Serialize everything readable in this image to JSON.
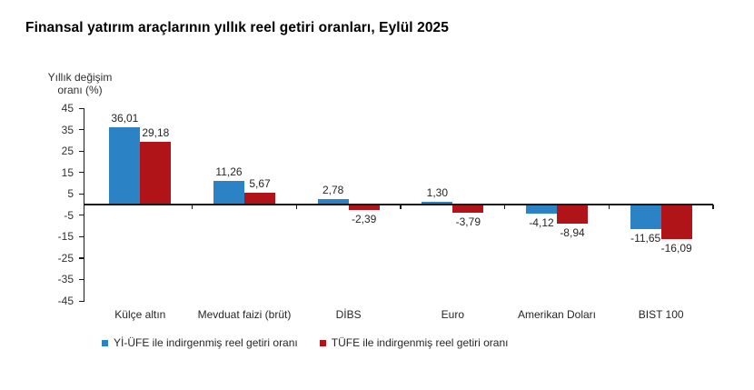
{
  "title": "Finansal yatırım araçlarının yıllık reel getiri oranları, Eylül 2025",
  "y_axis": {
    "title_line1": "Yıllık değişim",
    "title_line2": "oranı (%)"
  },
  "chart_data": {
    "type": "bar",
    "title": "Finansal yatırım araçlarının yıllık reel getiri oranları, Eylül 2025",
    "xlabel": "",
    "ylabel": "Yıllık değişim oranı (%)",
    "ylim": [
      -45,
      45
    ],
    "y_ticks": [
      45,
      35,
      25,
      15,
      5,
      -5,
      -15,
      -25,
      -35,
      -45
    ],
    "grid": false,
    "legend_position": "bottom",
    "categories": [
      "Külçe altın",
      "Mevduat faizi (brüt)",
      "DİBS",
      "Euro",
      "Amerikan Doları",
      "BIST 100"
    ],
    "series": [
      {
        "name": "Yİ-ÜFE ile indirgenmiş reel getiri oranı",
        "color": "#2B83C6",
        "values": [
          36.01,
          11.26,
          2.78,
          1.3,
          -4.12,
          -11.65
        ],
        "labels": [
          "36,01",
          "11,26",
          "2,78",
          "1,30",
          "-4,12",
          "-11,65"
        ]
      },
      {
        "name": "TÜFE ile indirgenmiş reel getiri oranı",
        "color": "#B11418",
        "values": [
          29.18,
          5.67,
          -2.39,
          -3.79,
          -8.94,
          -16.09
        ],
        "labels": [
          "29,18",
          "5,67",
          "-2,39",
          "-3,79",
          "-8,94",
          "-16,09"
        ]
      }
    ]
  }
}
